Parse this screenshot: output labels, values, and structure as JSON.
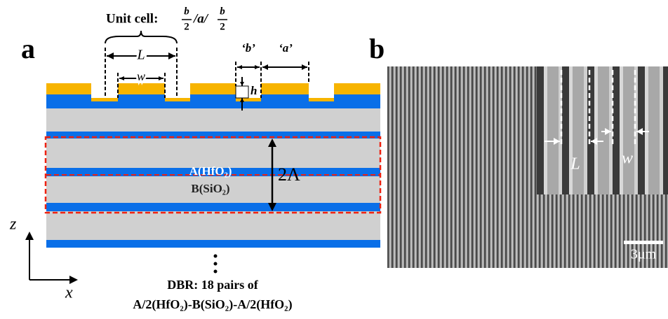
{
  "panel_a": {
    "label": "a",
    "unit_cell": {
      "prefix": "Unit cell:",
      "numerator_1": "b",
      "denominator_1": "2",
      "middle": "/a/",
      "numerator_2": "b",
      "denominator_2": "2"
    },
    "dim_L": "L",
    "dim_w": "w",
    "label_b": "‘b’",
    "label_a": "‘a’",
    "dim_h": "h",
    "layer_a": "A(HfO₂)",
    "layer_b": "B(SiO₂)",
    "period": "2Λ",
    "axis_z": "z",
    "axis_x": "x",
    "dbr_line1": "DBR: 18 pairs of",
    "dbr_line2": "A/2(HfO₂)-B(SiO₂)-A/2(HfO₂)"
  },
  "panel_b": {
    "label": "b",
    "inset_L": "L",
    "inset_w": "w",
    "scale_bar": "3μm"
  }
}
